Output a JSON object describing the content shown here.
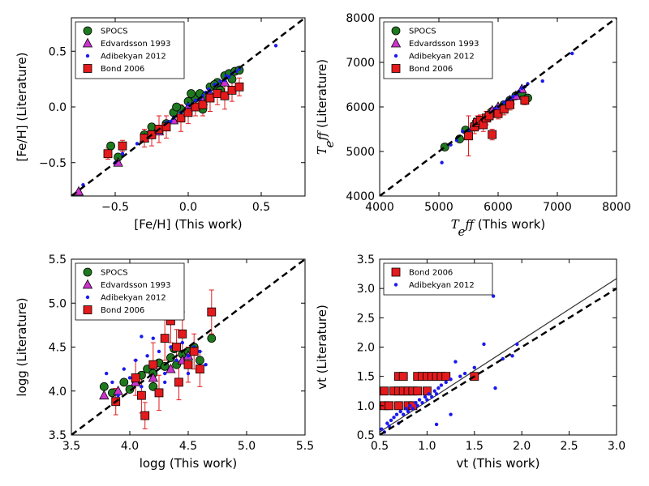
{
  "figure": "four-panel comparison of stellar parameters",
  "colors": {
    "spocs": "#1e7a1e",
    "edvardsson": "#cc33cc",
    "adibekyan": "#1a1aee",
    "bond": "#e41a1c",
    "errorbar": "#e41a1c",
    "one_to_one": "#000000",
    "fit_line": "#333333"
  },
  "chart_data": [
    {
      "id": "feh",
      "type": "scatter",
      "xlabel": "[Fe/H] (This work)",
      "ylabel": "[Fe/H] (Literature)",
      "xlim": [
        -0.8,
        0.8
      ],
      "ylim": [
        -0.8,
        0.8
      ],
      "xticks": [
        -0.5,
        0.0,
        0.5
      ],
      "xtick_labels": [
        "−0.5",
        "0.0",
        "0.5"
      ],
      "yticks": [
        -0.5,
        0.0,
        0.5
      ],
      "ytick_labels": [
        "−0.5",
        "0.0",
        "0.5"
      ],
      "one_to_one": true,
      "legend": "top-left",
      "series": [
        {
          "name": "SPOCS",
          "marker": "circle",
          "color": "#1e7a1e",
          "x": [
            -0.53,
            -0.48,
            -0.3,
            -0.2,
            -0.1,
            -0.05,
            0.0,
            0.05,
            0.08,
            0.12,
            0.15,
            0.2,
            0.22,
            0.25,
            0.28,
            0.3,
            0.32,
            0.1,
            -0.15,
            -0.25,
            0.18,
            0.35,
            0.02,
            -0.08
          ],
          "y": [
            -0.35,
            -0.45,
            -0.25,
            -0.2,
            -0.05,
            -0.02,
            0.05,
            0.08,
            0.12,
            0.1,
            0.18,
            0.22,
            0.15,
            0.28,
            0.3,
            0.25,
            0.32,
            -0.02,
            -0.15,
            -0.18,
            0.2,
            0.33,
            0.12,
            0.0
          ]
        },
        {
          "name": "Edvardsson 1993",
          "marker": "triangle",
          "color": "#cc33cc",
          "x": [
            -0.75,
            -0.48,
            -0.3,
            -0.2,
            -0.1,
            0.0,
            0.1,
            0.15,
            0.25
          ],
          "y": [
            -0.76,
            -0.5,
            -0.28,
            -0.22,
            -0.12,
            0.0,
            0.05,
            0.12,
            0.22
          ]
        },
        {
          "name": "Adibekyan 2012",
          "marker": "dot",
          "color": "#1a1aee",
          "x": [
            -0.72,
            -0.5,
            -0.45,
            -0.35,
            -0.3,
            -0.25,
            -0.2,
            -0.18,
            -0.15,
            -0.1,
            -0.05,
            0.0,
            0.03,
            0.05,
            0.08,
            0.1,
            0.12,
            0.15,
            0.18,
            0.2,
            0.22,
            0.25,
            0.28,
            0.3,
            0.33,
            0.35,
            0.6,
            -0.12,
            0.0,
            0.14,
            0.26
          ],
          "y": [
            -0.7,
            -0.5,
            -0.42,
            -0.33,
            -0.3,
            -0.24,
            -0.22,
            -0.18,
            -0.14,
            -0.1,
            -0.05,
            0.02,
            0.03,
            0.06,
            0.07,
            0.1,
            0.13,
            0.14,
            0.2,
            0.2,
            0.23,
            0.24,
            0.27,
            0.3,
            0.32,
            0.34,
            0.55,
            -0.13,
            -0.02,
            0.16,
            0.28
          ]
        },
        {
          "name": "Bond 2006",
          "marker": "square",
          "color": "#e41a1c",
          "x": [
            -0.55,
            -0.45,
            -0.3,
            -0.25,
            -0.2,
            -0.15,
            -0.05,
            0.0,
            0.05,
            0.1,
            0.15,
            0.2,
            0.25,
            0.3,
            0.35
          ],
          "y": [
            -0.42,
            -0.35,
            -0.28,
            -0.25,
            -0.2,
            -0.18,
            -0.1,
            -0.05,
            0.0,
            0.02,
            0.08,
            0.12,
            0.1,
            0.15,
            0.18
          ],
          "yerr": [
            0.05,
            0.05,
            0.08,
            0.1,
            0.12,
            0.1,
            0.12,
            0.1,
            0.08,
            0.1,
            0.12,
            0.1,
            0.12,
            0.1,
            0.08
          ]
        }
      ]
    },
    {
      "id": "teff",
      "type": "scatter",
      "xlabel": "(This work)",
      "ylabel": "(Literature)",
      "xlabel_math": "T_eff",
      "ylabel_math": "T_eff",
      "xlim": [
        4000,
        8000
      ],
      "ylim": [
        4000,
        8000
      ],
      "xticks": [
        4000,
        5000,
        6000,
        7000,
        8000
      ],
      "xtick_labels": [
        "4000",
        "5000",
        "6000",
        "7000",
        "8000"
      ],
      "yticks": [
        4000,
        5000,
        6000,
        7000,
        8000
      ],
      "ytick_labels": [
        "4000",
        "5000",
        "6000",
        "7000",
        "8000"
      ],
      "one_to_one": true,
      "legend": "top-left",
      "series": [
        {
          "name": "SPOCS",
          "marker": "circle",
          "color": "#1e7a1e",
          "x": [
            5100,
            5350,
            5450,
            5600,
            5700,
            5800,
            5850,
            5900,
            6000,
            6100,
            6200,
            6300,
            6400,
            6500,
            5950
          ],
          "y": [
            5100,
            5280,
            5480,
            5550,
            5680,
            5750,
            5820,
            5900,
            5950,
            6050,
            6150,
            6250,
            6300,
            6200,
            5860
          ]
        },
        {
          "name": "Edvardsson 1993",
          "marker": "triangle",
          "color": "#cc33cc",
          "x": [
            5600,
            5800,
            5900,
            6000,
            6200,
            6300,
            6400
          ],
          "y": [
            5650,
            5780,
            5920,
            6000,
            6150,
            6250,
            6400
          ]
        },
        {
          "name": "Adibekyan 2012",
          "marker": "dot",
          "color": "#1a1aee",
          "x": [
            5050,
            5200,
            5300,
            5400,
            5500,
            5550,
            5600,
            5650,
            5700,
            5750,
            5800,
            5850,
            5900,
            5950,
            6000,
            6050,
            6100,
            6150,
            6200,
            6250,
            6300,
            6350,
            6400,
            6450,
            6500,
            6750,
            7250
          ],
          "y": [
            4750,
            5150,
            5250,
            5450,
            5480,
            5550,
            5580,
            5650,
            5680,
            5750,
            5800,
            5820,
            5880,
            5950,
            6000,
            6020,
            6100,
            6150,
            6180,
            6230,
            6280,
            6350,
            6420,
            6450,
            6520,
            6580,
            7200
          ]
        },
        {
          "name": "Bond 2006",
          "marker": "square",
          "color": "#e41a1c",
          "x": [
            5500,
            5600,
            5650,
            5700,
            5750,
            5800,
            5850,
            5900,
            6000,
            6100,
            6200,
            6450
          ],
          "y": [
            5350,
            5550,
            5650,
            5700,
            5600,
            5750,
            5800,
            5380,
            5850,
            5950,
            6050,
            6150
          ],
          "yerr": [
            450,
            150,
            150,
            120,
            150,
            150,
            130,
            120,
            120,
            130,
            120,
            100
          ]
        }
      ]
    },
    {
      "id": "logg",
      "type": "scatter",
      "xlabel": "logg (This work)",
      "ylabel": "logg (Literature)",
      "xlim": [
        3.5,
        5.5
      ],
      "ylim": [
        3.5,
        5.5
      ],
      "xticks": [
        3.5,
        4.0,
        4.5,
        5.0,
        5.5
      ],
      "xtick_labels": [
        "3.5",
        "4.0",
        "4.5",
        "5.0",
        "5.5"
      ],
      "yticks": [
        3.5,
        4.0,
        4.5,
        5.0,
        5.5
      ],
      "ytick_labels": [
        "3.5",
        "4.0",
        "4.5",
        "5.0",
        "5.5"
      ],
      "one_to_one": true,
      "legend": "top-left",
      "series": [
        {
          "name": "SPOCS",
          "marker": "circle",
          "color": "#1e7a1e",
          "x": [
            3.78,
            3.85,
            3.95,
            4.0,
            4.05,
            4.1,
            4.15,
            4.2,
            4.25,
            4.3,
            4.35,
            4.4,
            4.45,
            4.5,
            4.55,
            4.6,
            4.7,
            4.2,
            4.38
          ],
          "y": [
            4.05,
            3.98,
            4.1,
            4.02,
            4.12,
            4.18,
            4.25,
            4.2,
            4.32,
            4.28,
            4.38,
            4.3,
            4.42,
            4.45,
            4.5,
            4.35,
            4.6,
            4.05,
            4.48
          ]
        },
        {
          "name": "Edvardsson 1993",
          "marker": "triangle",
          "color": "#cc33cc",
          "x": [
            3.78,
            3.9,
            4.05,
            4.2,
            4.35,
            4.45,
            4.5
          ],
          "y": [
            3.95,
            4.0,
            4.1,
            4.15,
            4.25,
            4.35,
            4.4
          ]
        },
        {
          "name": "Adibekyan 2012",
          "marker": "dot",
          "color": "#1a1aee",
          "x": [
            3.8,
            3.85,
            3.9,
            3.95,
            4.0,
            4.05,
            4.1,
            4.15,
            4.2,
            4.25,
            4.3,
            4.35,
            4.4,
            4.45,
            4.5,
            4.55,
            4.6,
            4.65,
            4.2,
            4.1,
            4.3,
            4.5
          ],
          "y": [
            4.2,
            4.1,
            3.95,
            4.25,
            4.15,
            4.35,
            4.05,
            4.4,
            4.3,
            4.45,
            4.2,
            4.5,
            4.35,
            4.55,
            4.4,
            4.5,
            4.45,
            4.3,
            4.6,
            4.62,
            4.1,
            4.2
          ]
        },
        {
          "name": "Bond 2006",
          "marker": "square",
          "color": "#e41a1c",
          "x": [
            3.88,
            4.05,
            4.1,
            4.13,
            4.2,
            4.25,
            4.3,
            4.35,
            4.4,
            4.42,
            4.45,
            4.5,
            4.55,
            4.6,
            4.7
          ],
          "y": [
            3.88,
            4.15,
            3.95,
            3.72,
            4.3,
            3.98,
            4.6,
            4.8,
            4.5,
            4.1,
            4.65,
            4.3,
            4.45,
            4.25,
            4.9
          ],
          "yerr": [
            0.15,
            0.2,
            0.2,
            0.15,
            0.25,
            0.2,
            0.25,
            0.25,
            0.2,
            0.2,
            0.25,
            0.2,
            0.2,
            0.2,
            0.25
          ]
        }
      ]
    },
    {
      "id": "vt",
      "type": "scatter",
      "xlabel": "vt (This work)",
      "ylabel": "vt (Literature)",
      "xlim": [
        0.5,
        3.0
      ],
      "ylim": [
        0.5,
        3.5
      ],
      "xticks": [
        0.5,
        1.0,
        1.5,
        2.0,
        2.5,
        3.0
      ],
      "xtick_labels": [
        "0.5",
        "1.0",
        "1.5",
        "2.0",
        "2.5",
        "3.0"
      ],
      "yticks": [
        0.5,
        1.0,
        1.5,
        2.0,
        2.5,
        3.0,
        3.5
      ],
      "ytick_labels": [
        "0.5",
        "1.0",
        "1.5",
        "2.0",
        "2.5",
        "3.0",
        "3.5"
      ],
      "one_to_one": true,
      "fit_line": {
        "x": [
          0.5,
          3.0
        ],
        "y": [
          0.55,
          3.17
        ]
      },
      "legend": "top-left",
      "series": [
        {
          "name": "Bond 2006",
          "marker": "square",
          "color": "#e41a1c",
          "x": [
            0.55,
            0.6,
            0.65,
            0.7,
            0.75,
            0.8,
            0.85,
            0.9,
            0.95,
            1.0,
            1.05,
            1.1,
            1.15,
            1.2,
            0.7,
            0.75,
            0.8,
            0.85,
            0.9,
            1.0,
            0.55,
            0.7,
            1.5
          ],
          "y": [
            1.0,
            1.0,
            1.25,
            1.25,
            1.25,
            1.25,
            1.25,
            1.5,
            1.5,
            1.5,
            1.5,
            1.5,
            1.5,
            1.5,
            1.5,
            1.5,
            1.0,
            1.0,
            1.25,
            1.25,
            1.25,
            1.0,
            1.5
          ]
        },
        {
          "name": "Adibekyan 2012",
          "marker": "dot",
          "color": "#1a1aee",
          "x": [
            0.52,
            0.55,
            0.58,
            0.6,
            0.62,
            0.65,
            0.68,
            0.7,
            0.72,
            0.75,
            0.78,
            0.8,
            0.82,
            0.85,
            0.88,
            0.9,
            0.92,
            0.95,
            0.98,
            1.0,
            1.02,
            1.05,
            1.08,
            1.1,
            1.12,
            1.15,
            1.2,
            1.25,
            1.3,
            1.35,
            1.4,
            1.5,
            1.6,
            1.7,
            1.8,
            1.9,
            1.95,
            1.72,
            1.1,
            1.25
          ],
          "y": [
            0.6,
            0.55,
            0.7,
            0.65,
            0.75,
            0.8,
            0.85,
            0.7,
            0.9,
            0.85,
            0.95,
            0.9,
            1.0,
            0.95,
            1.05,
            1.0,
            1.1,
            1.05,
            1.15,
            1.1,
            1.2,
            1.15,
            1.25,
            1.2,
            1.3,
            1.35,
            1.4,
            1.45,
            1.75,
            1.5,
            1.55,
            1.65,
            2.05,
            2.87,
            1.8,
            1.85,
            2.05,
            1.3,
            0.68,
            0.85
          ]
        }
      ]
    }
  ]
}
